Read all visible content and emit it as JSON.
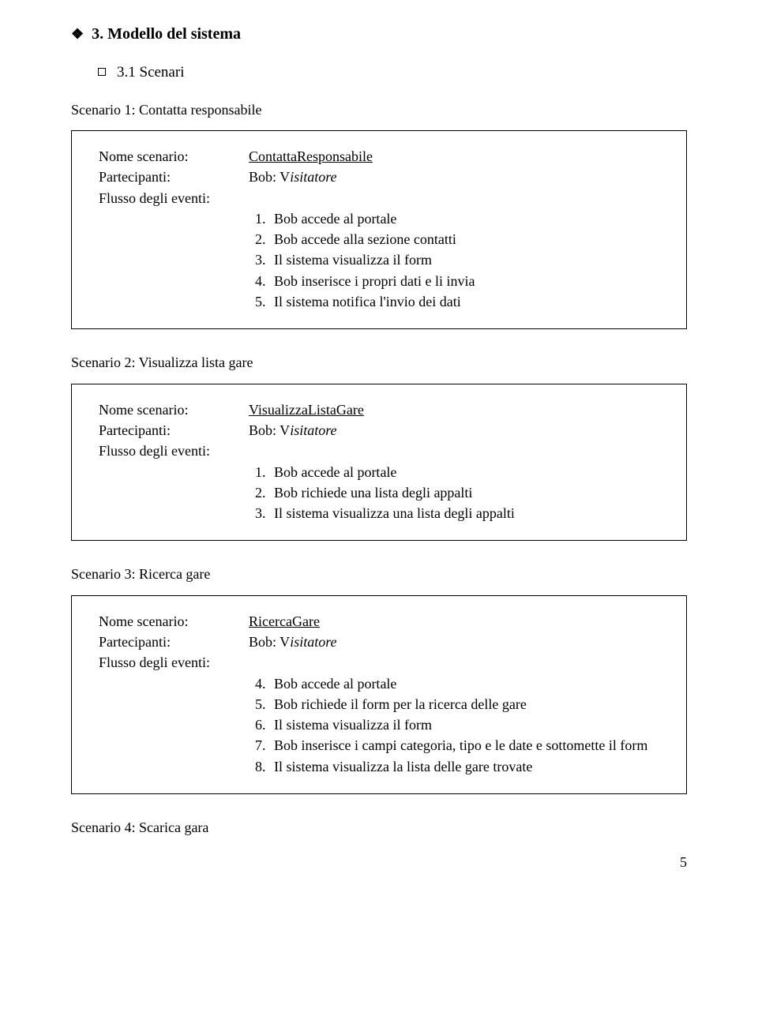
{
  "section": {
    "heading": "3. Modello del sistema",
    "subsection": "3.1 Scenari"
  },
  "labels": {
    "nome_scenario": "Nome scenario:",
    "partecipanti": "Partecipanti:",
    "flusso": "Flusso degli eventi:"
  },
  "participant": {
    "name": "Bob: V",
    "role": "isitatore"
  },
  "scenario1": {
    "title": "Scenario 1: Contatta responsabile",
    "name": "ContattaResponsabile",
    "steps": [
      "Bob accede al portale",
      "Bob accede alla sezione contatti",
      "Il sistema visualizza il form",
      "Bob inserisce i propri dati e li invia",
      "Il sistema notifica l'invio dei dati"
    ]
  },
  "scenario2": {
    "title": "Scenario 2: Visualizza lista gare",
    "name": "VisualizzaListaGare",
    "steps": [
      "Bob accede al portale",
      "Bob richiede una lista degli appalti",
      "Il sistema visualizza una lista degli appalti"
    ]
  },
  "scenario3": {
    "title": "Scenario 3: Ricerca gare",
    "name": "RicercaGare",
    "steps": [
      "Bob accede al portale",
      "Bob richiede il form per la ricerca delle gare",
      "Il sistema visualizza il form",
      "Bob inserisce i campi categoria, tipo e le date e sottomette il form",
      "Il sistema visualizza la lista delle gare trovate"
    ]
  },
  "scenario4": {
    "title": "Scenario 4: Scarica gara"
  },
  "page_number": "5",
  "colors": {
    "text": "#000000",
    "background": "#ffffff",
    "border": "#000000"
  }
}
